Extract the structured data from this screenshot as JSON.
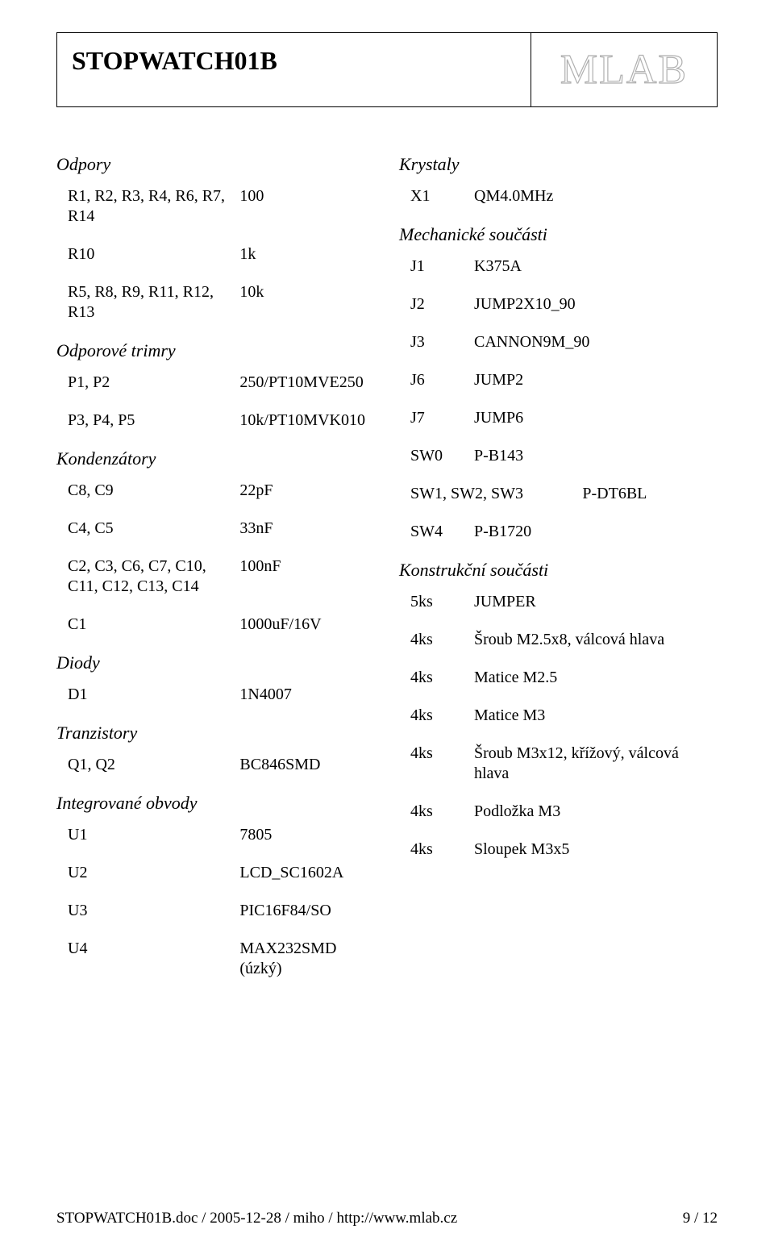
{
  "header": {
    "title": "STOPWATCH01B",
    "logo_text": "MLAB"
  },
  "left_col": {
    "sections": [
      {
        "title": "Odpory",
        "rows": [
          {
            "label": "R1, R2, R3, R4, R6, R7, R14",
            "value": "100"
          },
          {
            "label": "R10",
            "value": "1k"
          },
          {
            "label": "R5, R8, R9, R11, R12, R13",
            "value": "10k"
          }
        ]
      },
      {
        "title": "Odporové trimry",
        "rows": [
          {
            "label": "P1, P2",
            "value": "250/PT10MVE250"
          },
          {
            "label": "P3, P4, P5",
            "value": "10k/PT10MVK010"
          }
        ]
      },
      {
        "title": "Kondenzátory",
        "rows": [
          {
            "label": "C8, C9",
            "value": "22pF"
          },
          {
            "label": "C4, C5",
            "value": "33nF"
          },
          {
            "label": "C2, C3, C6, C7, C10, C11, C12, C13, C14",
            "value": "100nF"
          },
          {
            "label": "C1",
            "value": "1000uF/16V"
          }
        ]
      },
      {
        "title": "Diody",
        "rows": [
          {
            "label": "D1",
            "value": "1N4007"
          }
        ]
      },
      {
        "title": "Tranzistory",
        "rows": [
          {
            "label": "Q1, Q2",
            "value": "BC846SMD"
          }
        ]
      },
      {
        "title": "Integrované obvody",
        "rows": [
          {
            "label": "U1",
            "value": "7805"
          },
          {
            "label": "U2",
            "value": "LCD_SC1602A"
          },
          {
            "label": "U3",
            "value": "PIC16F84/SO"
          },
          {
            "label": "U4",
            "value": "MAX232SMD (úzký)"
          }
        ]
      }
    ]
  },
  "right_col": {
    "sections": [
      {
        "title": "Krystaly",
        "rows": [
          {
            "label": "X1",
            "value": "QM4.0MHz"
          }
        ]
      },
      {
        "title": "Mechanické součásti",
        "rows": [
          {
            "label": "J1",
            "value": "K375A"
          },
          {
            "label": "J2",
            "value": "JUMP2X10_90"
          },
          {
            "label": "J3",
            "value": "CANNON9M_90"
          },
          {
            "label": "J6",
            "value": "JUMP2"
          },
          {
            "label": "J7",
            "value": "JUMP6"
          },
          {
            "label": "SW0",
            "value": "P-B143"
          },
          {
            "label": "SW1, SW2, SW3",
            "value": "P-DT6BL"
          },
          {
            "label": "SW4",
            "value": "P-B1720"
          }
        ]
      },
      {
        "title": "Konstrukční součásti",
        "rows": [
          {
            "label": "5ks",
            "value": "JUMPER"
          },
          {
            "label": "4ks",
            "value": "Šroub M2.5x8, válcová hlava"
          },
          {
            "label": "4ks",
            "value": "Matice M2.5"
          },
          {
            "label": "4ks",
            "value": "Matice M3"
          },
          {
            "label": "4ks",
            "value": "Šroub M3x12, křížový, válcová hlava"
          },
          {
            "label": "4ks",
            "value": "Podložka M3"
          },
          {
            "label": "4ks",
            "value": "Sloupek M3x5"
          }
        ]
      }
    ]
  },
  "footer": {
    "left": "STOPWATCH01B.doc / 2005-12-28 / miho / http://www.mlab.cz",
    "right": "9 / 12"
  }
}
